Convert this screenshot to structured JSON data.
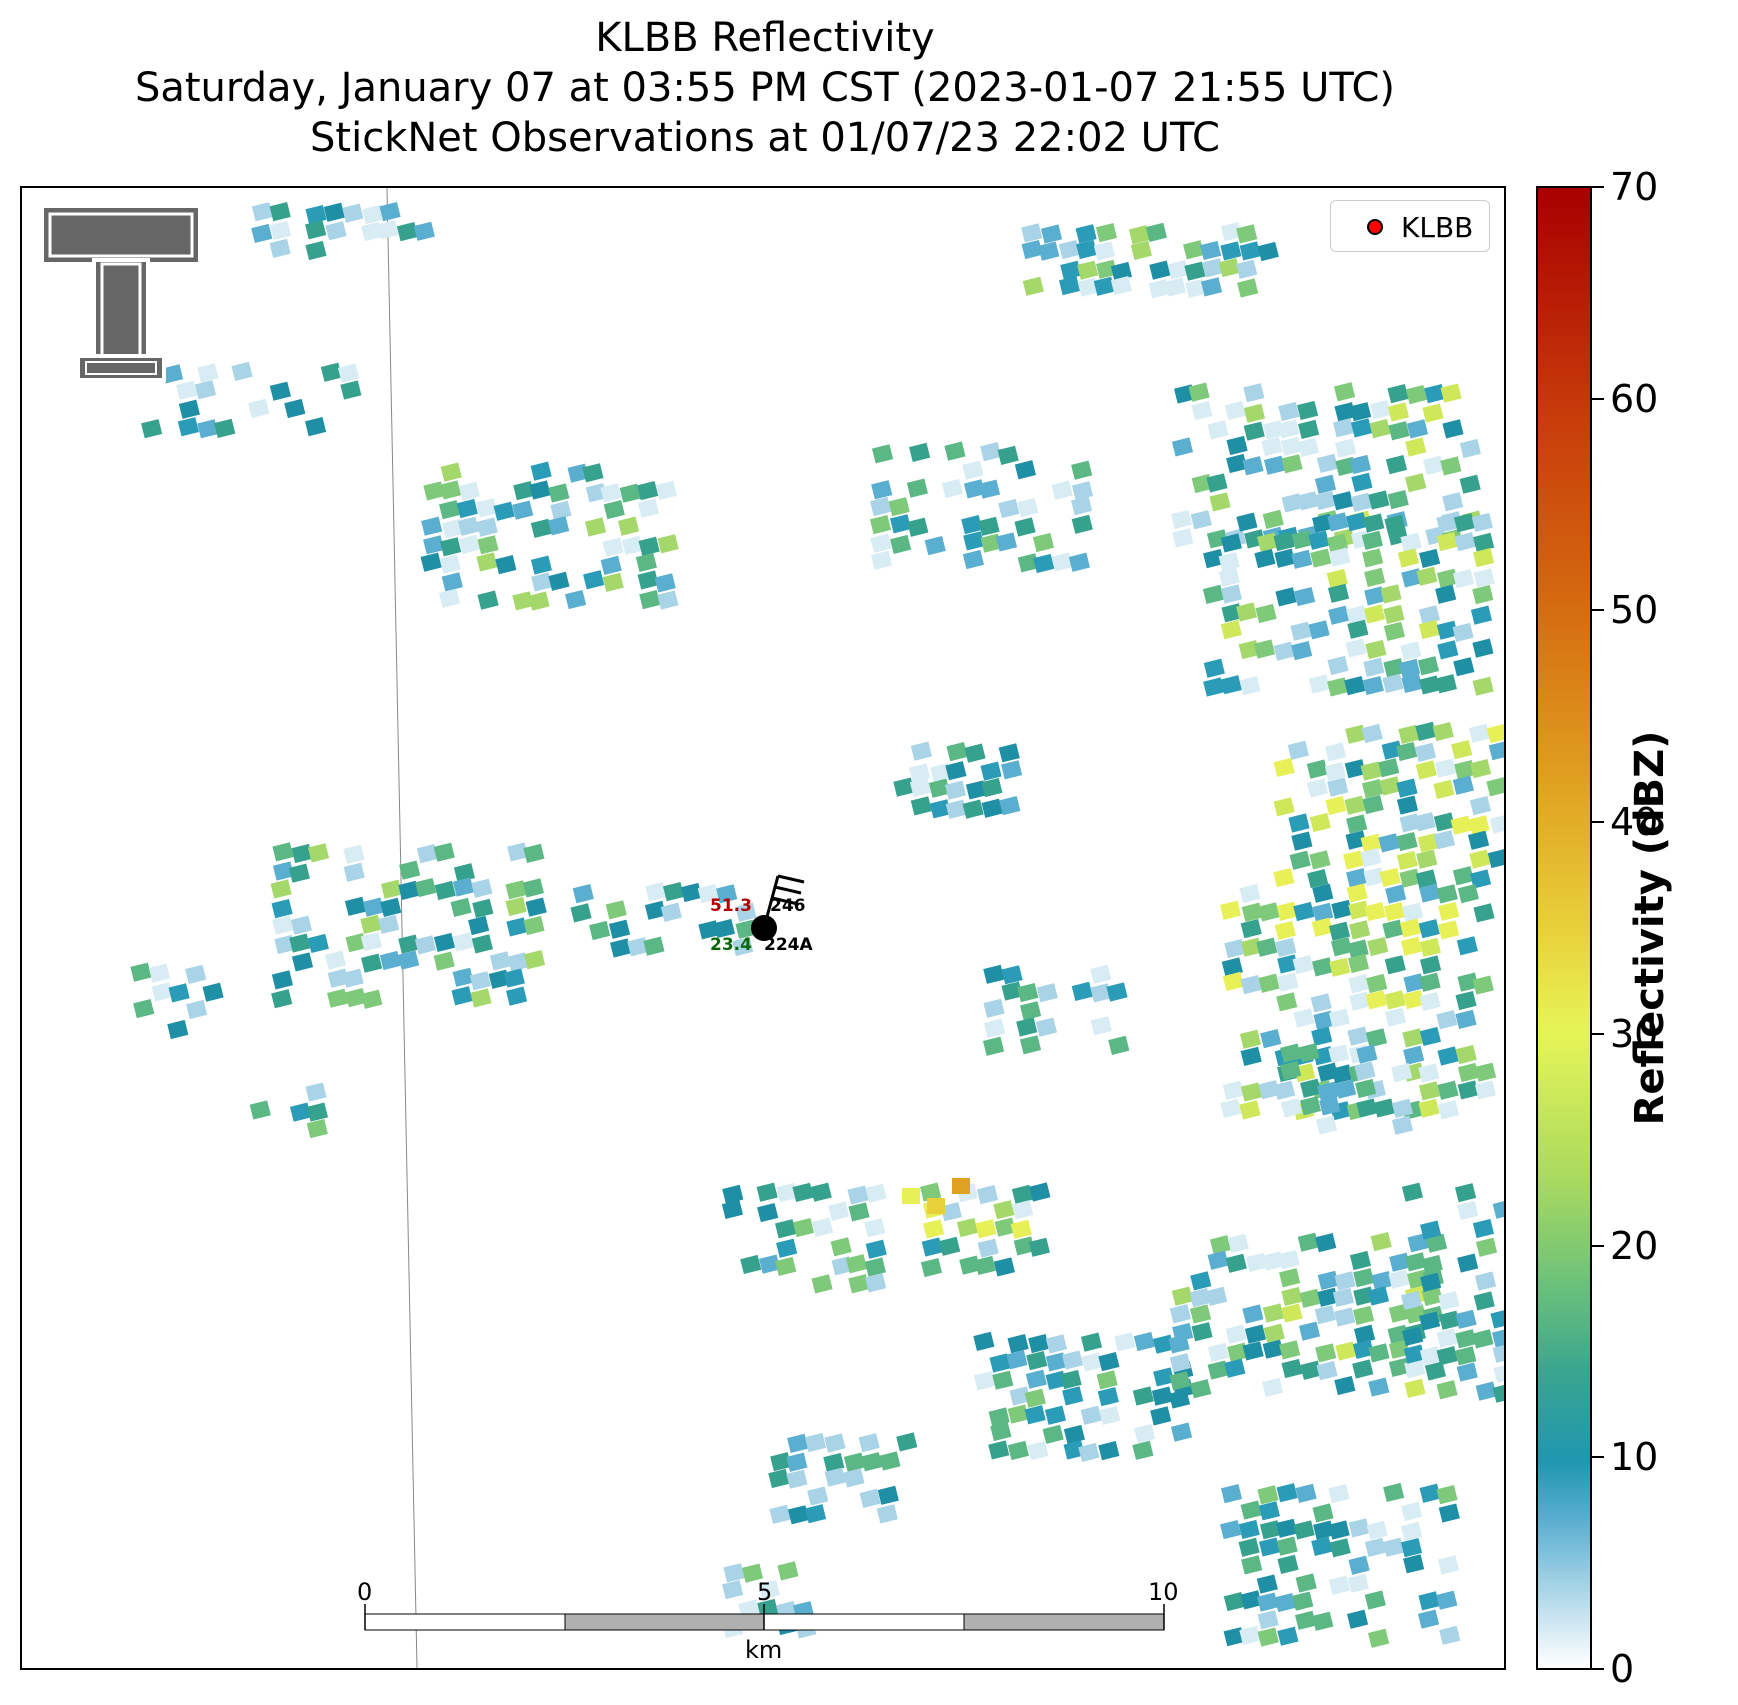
{
  "title": {
    "line1": "KLBB Reflectivity",
    "line2": "Saturday, January 07 at 03:55 PM CST (2023-01-07 21:55 UTC)",
    "line3": "StickNet Observations at 01/07/23 22:02 UTC"
  },
  "legend": {
    "label": "KLBB",
    "marker_color": "#ff0000"
  },
  "colorbar": {
    "title": "Reflectivity (dBZ)",
    "ticks": [
      "0",
      "10",
      "20",
      "30",
      "40",
      "50",
      "60",
      "70"
    ],
    "range": [
      0,
      70
    ]
  },
  "station": {
    "temperature": "51.3",
    "dewpoint": "23.4",
    "direction": "246",
    "id": "224A",
    "temperature_color": "#b00000",
    "dewpoint_color": "#0a6a0a"
  },
  "scalebar": {
    "labels": [
      "0",
      "5",
      "10"
    ],
    "unit": "km"
  },
  "logo": {
    "name": "texas-tech-double-t-logo"
  },
  "colors": {
    "palette": [
      "#d8ecf4",
      "#a9d3e6",
      "#5aaed0",
      "#2a9cb8",
      "#1f8fa6",
      "#36a28e",
      "#5bb885",
      "#7fc97a",
      "#a5d86a",
      "#cfe85a",
      "#e8f057"
    ]
  }
}
